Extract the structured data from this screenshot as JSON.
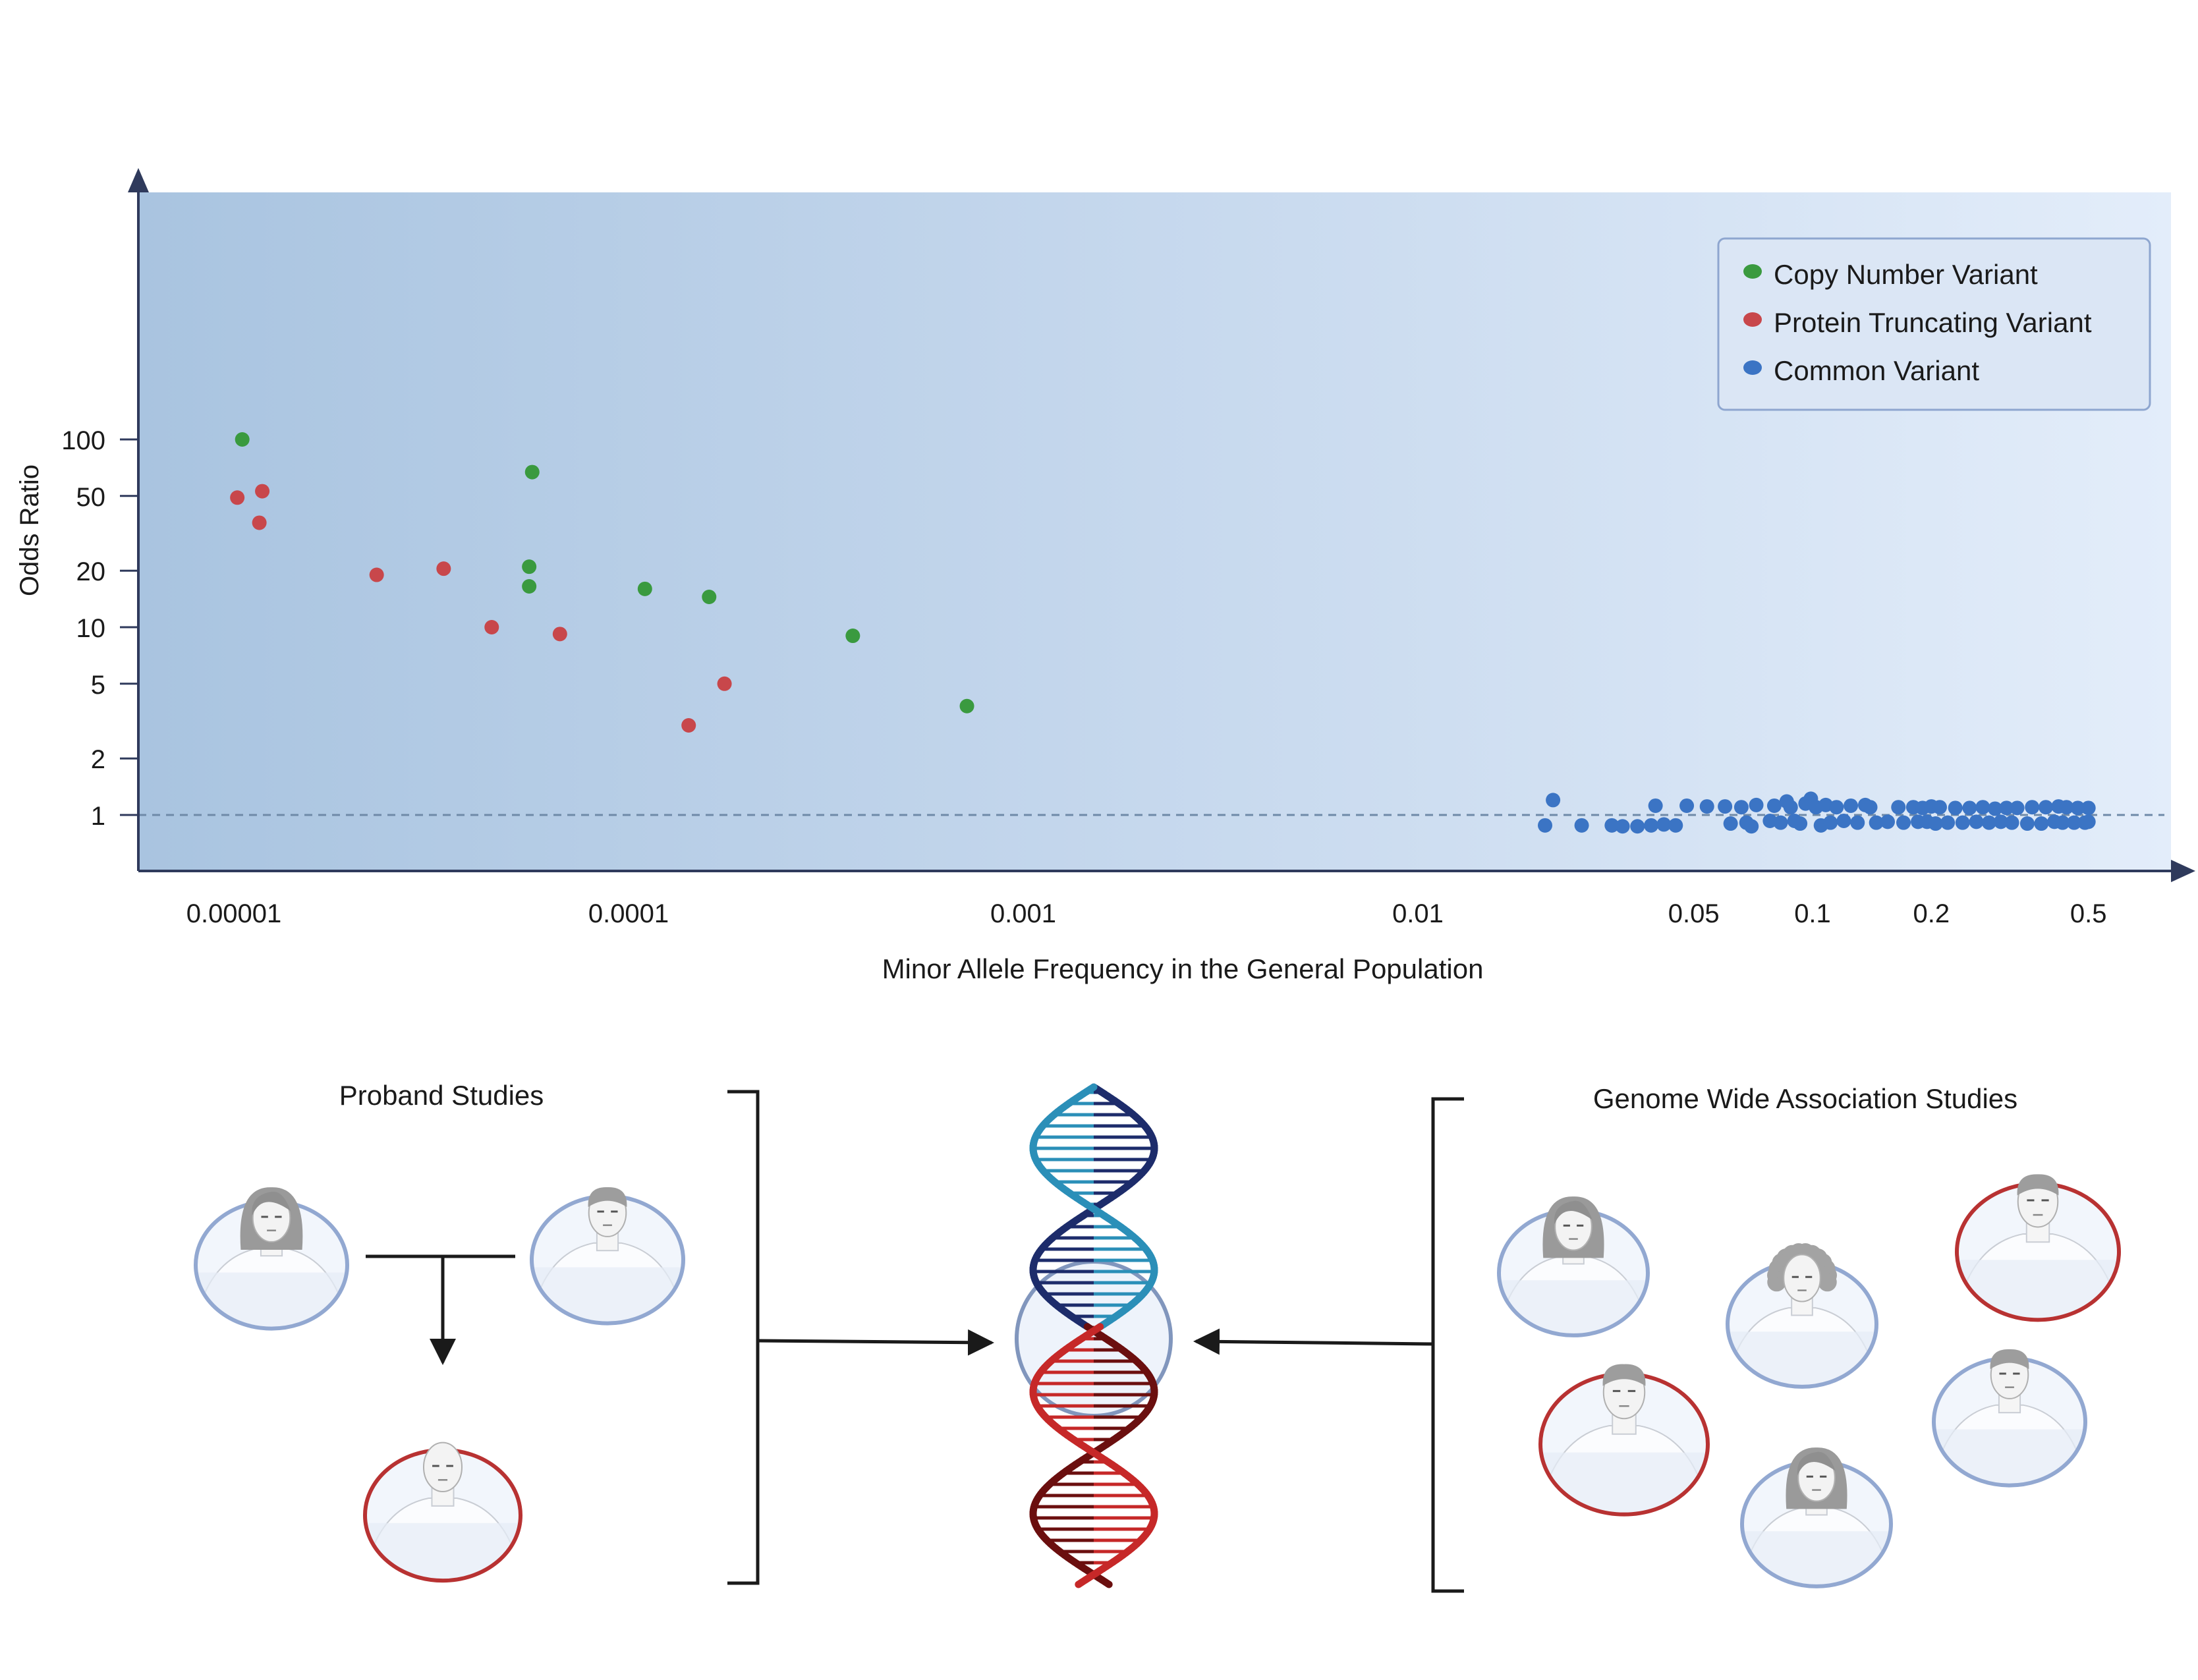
{
  "chart_data": {
    "type": "scatter",
    "xlabel": "Minor Allele Frequency in the General Population",
    "ylabel": "Odds Ratio",
    "x_scale": "log",
    "y_scale": "log",
    "xlim": [
      5e-06,
      1.0
    ],
    "ylim": [
      0.75,
      220
    ],
    "x_ticks": [
      1e-05,
      0.0001,
      0.001,
      0.01,
      0.05,
      0.1,
      0.2,
      0.5
    ],
    "x_tick_labels": [
      "0.00001",
      "0.0001",
      "0.001",
      "0.01",
      "0.05",
      "0.1",
      "0.2",
      "0.5"
    ],
    "y_ticks": [
      1,
      2,
      5,
      10,
      20,
      50,
      100
    ],
    "y_tick_labels": [
      "1",
      "2",
      "5",
      "10",
      "20",
      "50",
      "100"
    ],
    "reference_line": {
      "y": 1,
      "style": "dashed"
    },
    "legend_position": "top-right",
    "background": "horizontal gradient, darker blue on the left",
    "series": [
      {
        "name": "Copy Number Variant",
        "color": "#3a9a3f",
        "points": [
          {
            "x": 1.05e-05,
            "y": 100
          },
          {
            "x": 5.7e-05,
            "y": 67
          },
          {
            "x": 5.6e-05,
            "y": 21
          },
          {
            "x": 5.6e-05,
            "y": 16.5
          },
          {
            "x": 0.00011,
            "y": 16
          },
          {
            "x": 0.00016,
            "y": 14.5
          },
          {
            "x": 0.00037,
            "y": 9
          },
          {
            "x": 0.00072,
            "y": 3.8
          }
        ]
      },
      {
        "name": "Protein Truncating Variant",
        "color": "#c8474b",
        "points": [
          {
            "x": 1.02e-05,
            "y": 49
          },
          {
            "x": 1.18e-05,
            "y": 53
          },
          {
            "x": 1.16e-05,
            "y": 36
          },
          {
            "x": 2.3e-05,
            "y": 19
          },
          {
            "x": 3.4e-05,
            "y": 20.5
          },
          {
            "x": 4.5e-05,
            "y": 10
          },
          {
            "x": 6.7e-05,
            "y": 9.2
          },
          {
            "x": 0.000175,
            "y": 5
          },
          {
            "x": 0.000142,
            "y": 3
          }
        ]
      },
      {
        "name": "Common Variant",
        "color": "#3b74c4",
        "points": [
          {
            "x": 0.022,
            "y": 1.2
          },
          {
            "x": 0.021,
            "y": 0.88
          },
          {
            "x": 0.026,
            "y": 0.88
          },
          {
            "x": 0.031,
            "y": 0.88
          },
          {
            "x": 0.033,
            "y": 0.87
          },
          {
            "x": 0.036,
            "y": 0.87
          },
          {
            "x": 0.039,
            "y": 0.88
          },
          {
            "x": 0.04,
            "y": 1.12
          },
          {
            "x": 0.042,
            "y": 0.89
          },
          {
            "x": 0.045,
            "y": 0.88
          },
          {
            "x": 0.048,
            "y": 1.12
          },
          {
            "x": 0.054,
            "y": 1.11
          },
          {
            "x": 0.06,
            "y": 1.11
          },
          {
            "x": 0.062,
            "y": 0.9
          },
          {
            "x": 0.066,
            "y": 1.1
          },
          {
            "x": 0.068,
            "y": 0.91
          },
          {
            "x": 0.07,
            "y": 0.87
          },
          {
            "x": 0.072,
            "y": 1.13
          },
          {
            "x": 0.078,
            "y": 0.93
          },
          {
            "x": 0.08,
            "y": 1.12
          },
          {
            "x": 0.083,
            "y": 0.91
          },
          {
            "x": 0.086,
            "y": 1.18
          },
          {
            "x": 0.088,
            "y": 1.1
          },
          {
            "x": 0.09,
            "y": 0.93
          },
          {
            "x": 0.093,
            "y": 0.9
          },
          {
            "x": 0.096,
            "y": 1.15
          },
          {
            "x": 0.099,
            "y": 1.22
          },
          {
            "x": 0.102,
            "y": 1.1
          },
          {
            "x": 0.105,
            "y": 0.88
          },
          {
            "x": 0.108,
            "y": 1.13
          },
          {
            "x": 0.111,
            "y": 0.91
          },
          {
            "x": 0.115,
            "y": 1.1
          },
          {
            "x": 0.12,
            "y": 0.93
          },
          {
            "x": 0.125,
            "y": 1.12
          },
          {
            "x": 0.13,
            "y": 0.91
          },
          {
            "x": 0.136,
            "y": 1.13
          },
          {
            "x": 0.14,
            "y": 1.1
          },
          {
            "x": 0.145,
            "y": 0.91
          },
          {
            "x": 0.155,
            "y": 0.92
          },
          {
            "x": 0.165,
            "y": 1.1
          },
          {
            "x": 0.17,
            "y": 0.91
          },
          {
            "x": 0.18,
            "y": 1.1
          },
          {
            "x": 0.185,
            "y": 0.92
          },
          {
            "x": 0.19,
            "y": 1.09
          },
          {
            "x": 0.195,
            "y": 0.92
          },
          {
            "x": 0.2,
            "y": 1.11
          },
          {
            "x": 0.205,
            "y": 0.9
          },
          {
            "x": 0.21,
            "y": 1.1
          },
          {
            "x": 0.22,
            "y": 0.91
          },
          {
            "x": 0.23,
            "y": 1.09
          },
          {
            "x": 0.24,
            "y": 0.91
          },
          {
            "x": 0.25,
            "y": 1.09
          },
          {
            "x": 0.26,
            "y": 0.92
          },
          {
            "x": 0.27,
            "y": 1.1
          },
          {
            "x": 0.28,
            "y": 0.91
          },
          {
            "x": 0.29,
            "y": 1.08
          },
          {
            "x": 0.3,
            "y": 0.92
          },
          {
            "x": 0.31,
            "y": 1.09
          },
          {
            "x": 0.32,
            "y": 0.91
          },
          {
            "x": 0.33,
            "y": 1.09
          },
          {
            "x": 0.35,
            "y": 0.9
          },
          {
            "x": 0.36,
            "y": 1.1
          },
          {
            "x": 0.38,
            "y": 0.9
          },
          {
            "x": 0.39,
            "y": 1.1
          },
          {
            "x": 0.41,
            "y": 0.92
          },
          {
            "x": 0.42,
            "y": 1.11
          },
          {
            "x": 0.43,
            "y": 0.91
          },
          {
            "x": 0.44,
            "y": 1.1
          },
          {
            "x": 0.46,
            "y": 0.91
          },
          {
            "x": 0.47,
            "y": 1.09
          },
          {
            "x": 0.49,
            "y": 0.91
          },
          {
            "x": 0.5,
            "y": 1.09
          },
          {
            "x": 0.5,
            "y": 0.92
          }
        ]
      }
    ]
  },
  "diagram": {
    "proband_title": "Proband Studies",
    "gwas_title": "Genome Wide Association Studies",
    "affected_ring_color": "#b83232",
    "unaffected_ring_color": "#92a8d1",
    "proband_figures": [
      {
        "role": "parent",
        "hair": "long",
        "affected": false
      },
      {
        "role": "parent",
        "hair": "short",
        "affected": false
      },
      {
        "role": "child",
        "hair": "none",
        "affected": true
      }
    ],
    "gwas_figures": [
      {
        "hair": "long",
        "affected": false
      },
      {
        "hair": "short",
        "affected": true
      },
      {
        "hair": "curly",
        "affected": false
      },
      {
        "hair": "long",
        "affected": false
      },
      {
        "hair": "short",
        "affected": true
      },
      {
        "hair": "short",
        "affected": false
      }
    ],
    "dna_colors": {
      "top": [
        "#1d2c6b",
        "#2b8fb8"
      ],
      "bottom": [
        "#6b0f0f",
        "#c62828"
      ]
    }
  }
}
